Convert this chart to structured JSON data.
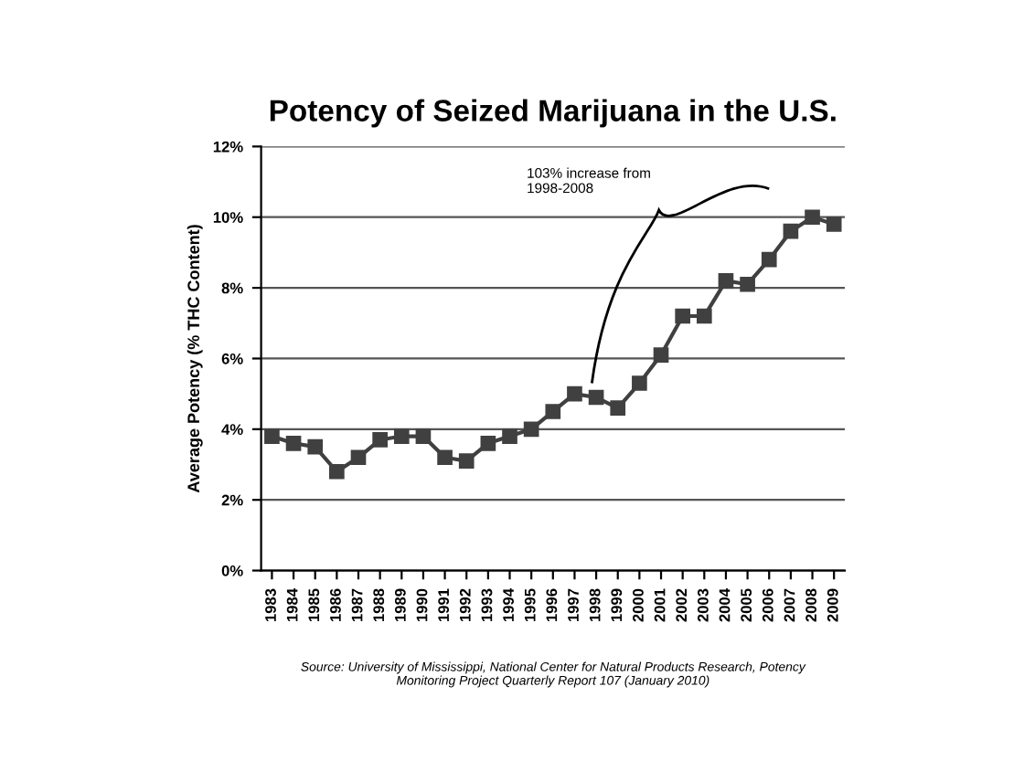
{
  "chart_data": {
    "type": "line",
    "title": "Potency of Seized Marijuana in the U.S.",
    "ylabel": "Average Potency (% THC Content)",
    "categories": [
      "1983",
      "1984",
      "1985",
      "1986",
      "1987",
      "1988",
      "1989",
      "1990",
      "1991",
      "1992",
      "1993",
      "1994",
      "1995",
      "1996",
      "1997",
      "1998",
      "1999",
      "2000",
      "2001",
      "2002",
      "2003",
      "2004",
      "2005",
      "2006",
      "2007",
      "2008",
      "2009"
    ],
    "series": [
      {
        "color": "#404040",
        "values": [
          3.8,
          3.6,
          3.5,
          2.8,
          3.2,
          3.7,
          3.8,
          3.8,
          3.2,
          3.1,
          3.6,
          3.8,
          4.0,
          4.5,
          5.0,
          4.9,
          4.6,
          5.3,
          6.1,
          7.2,
          7.2,
          8.2,
          8.1,
          8.8,
          9.6,
          10.0,
          9.8
        ]
      }
    ],
    "ylim": [
      0,
      12
    ],
    "yticks": [
      {
        "value": 0,
        "label": "0%"
      },
      {
        "value": 2,
        "label": "2%"
      },
      {
        "value": 4,
        "label": "4%"
      },
      {
        "value": 6,
        "label": "6%"
      },
      {
        "value": 8,
        "label": "8%"
      },
      {
        "value": 10,
        "label": "10%"
      },
      {
        "value": 12,
        "label": "12%"
      }
    ],
    "grid": "y",
    "marker": "square",
    "line_style": "solid",
    "annotations": [
      "103% increase from\n1998-2008",
      "Source: University of Mississippi, National Center for Natural Products Research, Potency\nMonitoring Project Quarterly Report 107 (January 2010)"
    ]
  }
}
